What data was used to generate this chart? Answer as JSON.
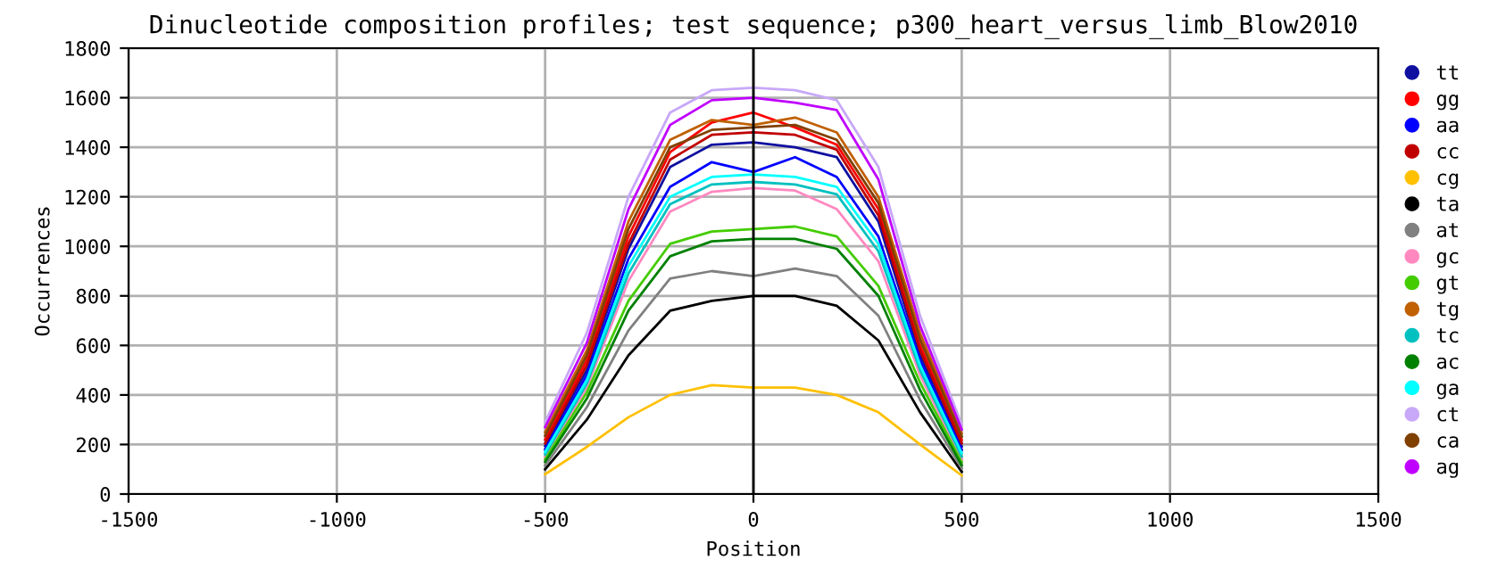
{
  "chart_data": {
    "type": "line",
    "title": "Dinucleotide composition profiles; test sequence; p300_heart_versus_limb_Blow2010",
    "xlabel": "Position",
    "ylabel": "Occurrences",
    "x": [
      -500,
      -400,
      -300,
      -200,
      -100,
      0,
      100,
      200,
      300,
      400,
      500
    ],
    "series": [
      {
        "name": "tt",
        "color": "#1010a0",
        "values": [
          195,
          500,
          990,
          1320,
          1410,
          1420,
          1400,
          1360,
          1100,
          560,
          192
        ]
      },
      {
        "name": "gg",
        "color": "#ff0000",
        "values": [
          220,
          540,
          1040,
          1380,
          1500,
          1540,
          1480,
          1410,
          1150,
          600,
          218
        ]
      },
      {
        "name": "aa",
        "color": "#0000ff",
        "values": [
          180,
          480,
          950,
          1240,
          1340,
          1300,
          1360,
          1280,
          1040,
          540,
          178
        ]
      },
      {
        "name": "cc",
        "color": "#c00000",
        "values": [
          205,
          520,
          1010,
          1350,
          1450,
          1460,
          1450,
          1390,
          1125,
          580,
          205
        ]
      },
      {
        "name": "cg",
        "color": "#ffc000",
        "values": [
          80,
          190,
          310,
          400,
          440,
          430,
          430,
          400,
          330,
          200,
          75
        ]
      },
      {
        "name": "ta",
        "color": "#000000",
        "values": [
          100,
          300,
          560,
          740,
          780,
          800,
          800,
          760,
          620,
          330,
          90
        ]
      },
      {
        "name": "at",
        "color": "#808080",
        "values": [
          115,
          350,
          660,
          870,
          900,
          880,
          910,
          880,
          720,
          380,
          104
        ]
      },
      {
        "name": "gc",
        "color": "#ff88c0",
        "values": [
          150,
          430,
          860,
          1140,
          1220,
          1235,
          1225,
          1150,
          940,
          480,
          140
        ]
      },
      {
        "name": "gt",
        "color": "#44cc00",
        "values": [
          140,
          410,
          780,
          1010,
          1060,
          1070,
          1080,
          1040,
          840,
          450,
          128
        ]
      },
      {
        "name": "tg",
        "color": "#c06000",
        "values": [
          250,
          580,
          1100,
          1430,
          1510,
          1490,
          1520,
          1460,
          1200,
          650,
          245
        ]
      },
      {
        "name": "tc",
        "color": "#00c0c0",
        "values": [
          160,
          445,
          890,
          1170,
          1250,
          1260,
          1250,
          1210,
          980,
          500,
          152
        ]
      },
      {
        "name": "ac",
        "color": "#008000",
        "values": [
          130,
          385,
          740,
          960,
          1020,
          1030,
          1030,
          990,
          800,
          420,
          116
        ]
      },
      {
        "name": "ga",
        "color": "#00ffff",
        "values": [
          170,
          460,
          920,
          1200,
          1280,
          1290,
          1280,
          1240,
          1010,
          520,
          165
        ]
      },
      {
        "name": "ct",
        "color": "#c8a8f8",
        "values": [
          290,
          650,
          1200,
          1540,
          1630,
          1640,
          1630,
          1590,
          1320,
          720,
          280
        ]
      },
      {
        "name": "ca",
        "color": "#804000",
        "values": [
          235,
          560,
          1070,
          1400,
          1470,
          1480,
          1490,
          1430,
          1175,
          625,
          232
        ]
      },
      {
        "name": "ag",
        "color": "#c000ff",
        "values": [
          270,
          610,
          1150,
          1490,
          1590,
          1600,
          1580,
          1550,
          1270,
          680,
          260
        ]
      }
    ],
    "xlim": [
      -1500,
      1500
    ],
    "xticks": [
      -1500,
      -1000,
      -500,
      0,
      500,
      1000,
      1500
    ],
    "ylim": [
      0,
      1800
    ],
    "yticks": [
      0,
      200,
      400,
      600,
      800,
      1000,
      1200,
      1400,
      1600,
      1800
    ],
    "ref_lines": [
      {
        "axis": "x",
        "value": 0,
        "color": "#000000"
      }
    ],
    "grid": true,
    "legend": "right",
    "marker": "none",
    "line_style": "solid"
  }
}
